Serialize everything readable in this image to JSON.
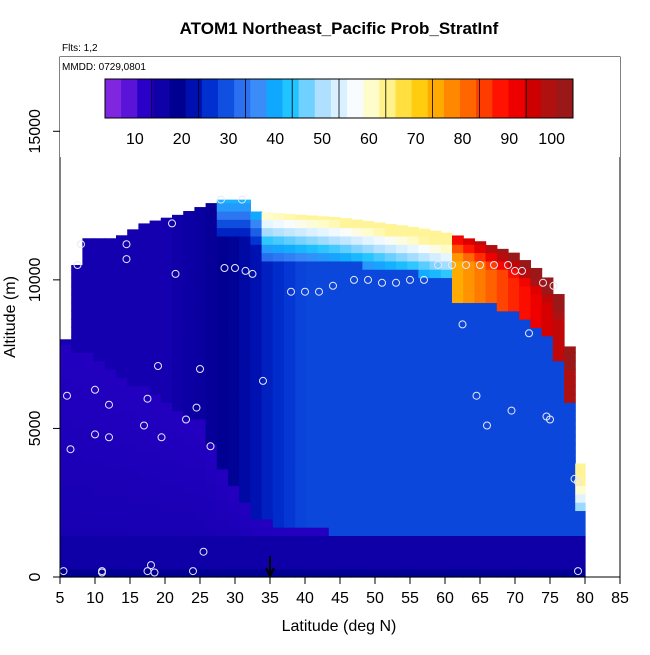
{
  "chart_data": {
    "type": "heatmap",
    "title": "ATOM1 Northeast_Pacific Prob_StratInf",
    "annotations": [
      "Flts: 1,2",
      "MMDD: 0729,0801"
    ],
    "xlabel": "Latitude (deg N)",
    "ylabel": "Altitude (m)",
    "xlim": [
      5,
      85
    ],
    "ylim": [
      0,
      17500
    ],
    "x_ticks": [
      5,
      10,
      15,
      20,
      25,
      30,
      35,
      40,
      45,
      50,
      55,
      60,
      65,
      70,
      75,
      80,
      85
    ],
    "y_ticks": [
      0,
      5000,
      10000,
      15000
    ],
    "colorbar": {
      "min": 0,
      "max": 100,
      "ticks": [
        10,
        20,
        30,
        40,
        50,
        60,
        70,
        80,
        90,
        100
      ],
      "colors": [
        "#7f26e0",
        "#5a14d8",
        "#2a00c8",
        "#0f00a8",
        "#000090",
        "#0010b0",
        "#0030d0",
        "#1050e0",
        "#2a70f0",
        "#3a8cf8",
        "#10a8ff",
        "#20c4ff",
        "#70d0ff",
        "#b0e0ff",
        "#d8f0ff",
        "#f8fcff",
        "#fffccc",
        "#fff28a",
        "#ffe040",
        "#ffcc10",
        "#ffaa00",
        "#ff8800",
        "#ff6600",
        "#ff3c00",
        "#ff1200",
        "#ee0000",
        "#cc0000",
        "#b01010",
        "#9a1818"
      ]
    },
    "grid": false,
    "data_summary": "Probability of stratiform clouds (%) by latitude and altitude: 5-15% below 4 km, 10-25% core between 30 and 80 deg N at 2-9 km, 30-60% band near 10 km between 35 and 60 deg N, 70-100% near 10-11 km between 62 and 78 deg N",
    "marker": {
      "x": 35,
      "y": 0,
      "type": "arrow"
    },
    "points": [
      {
        "x": 5.5,
        "y": 200
      },
      {
        "x": 6,
        "y": 6100
      },
      {
        "x": 6.5,
        "y": 4300
      },
      {
        "x": 7.5,
        "y": 10500
      },
      {
        "x": 8,
        "y": 11200
      },
      {
        "x": 10,
        "y": 6300
      },
      {
        "x": 10,
        "y": 4800
      },
      {
        "x": 11,
        "y": 200
      },
      {
        "x": 11,
        "y": 150
      },
      {
        "x": 12,
        "y": 5800
      },
      {
        "x": 12,
        "y": 4700
      },
      {
        "x": 14.5,
        "y": 11200
      },
      {
        "x": 14.5,
        "y": 10700
      },
      {
        "x": 17,
        "y": 5100
      },
      {
        "x": 17.5,
        "y": 6000
      },
      {
        "x": 17.5,
        "y": 200
      },
      {
        "x": 18,
        "y": 400
      },
      {
        "x": 18.5,
        "y": 150
      },
      {
        "x": 19,
        "y": 7100
      },
      {
        "x": 19.5,
        "y": 4700
      },
      {
        "x": 21,
        "y": 11900
      },
      {
        "x": 21.5,
        "y": 10200
      },
      {
        "x": 23,
        "y": 5300
      },
      {
        "x": 24,
        "y": 200
      },
      {
        "x": 24.5,
        "y": 5700
      },
      {
        "x": 25,
        "y": 7000
      },
      {
        "x": 25.5,
        "y": 850
      },
      {
        "x": 26.5,
        "y": 4400
      },
      {
        "x": 28,
        "y": 12700
      },
      {
        "x": 28.5,
        "y": 10400
      },
      {
        "x": 30,
        "y": 10400
      },
      {
        "x": 31,
        "y": 12700
      },
      {
        "x": 31.5,
        "y": 10300
      },
      {
        "x": 32.5,
        "y": 10200
      },
      {
        "x": 34,
        "y": 6600
      },
      {
        "x": 38,
        "y": 9600
      },
      {
        "x": 40,
        "y": 9600
      },
      {
        "x": 42,
        "y": 9600
      },
      {
        "x": 44,
        "y": 9800
      },
      {
        "x": 47,
        "y": 10000
      },
      {
        "x": 49,
        "y": 10000
      },
      {
        "x": 51,
        "y": 9900
      },
      {
        "x": 53,
        "y": 9900
      },
      {
        "x": 55,
        "y": 10000
      },
      {
        "x": 57,
        "y": 10000
      },
      {
        "x": 59,
        "y": 10500
      },
      {
        "x": 61,
        "y": 10500
      },
      {
        "x": 62.5,
        "y": 8500
      },
      {
        "x": 63,
        "y": 10500
      },
      {
        "x": 64.5,
        "y": 6100
      },
      {
        "x": 65,
        "y": 10500
      },
      {
        "x": 66,
        "y": 5100
      },
      {
        "x": 67,
        "y": 10500
      },
      {
        "x": 69,
        "y": 10500
      },
      {
        "x": 69.5,
        "y": 5600
      },
      {
        "x": 70,
        "y": 10300
      },
      {
        "x": 71,
        "y": 10300
      },
      {
        "x": 72,
        "y": 8200
      },
      {
        "x": 74,
        "y": 9900
      },
      {
        "x": 74.5,
        "y": 5400
      },
      {
        "x": 75,
        "y": 5300
      },
      {
        "x": 75.5,
        "y": 9800
      },
      {
        "x": 78.5,
        "y": 3300
      },
      {
        "x": 79,
        "y": 3200
      },
      {
        "x": 79,
        "y": 200
      }
    ]
  }
}
